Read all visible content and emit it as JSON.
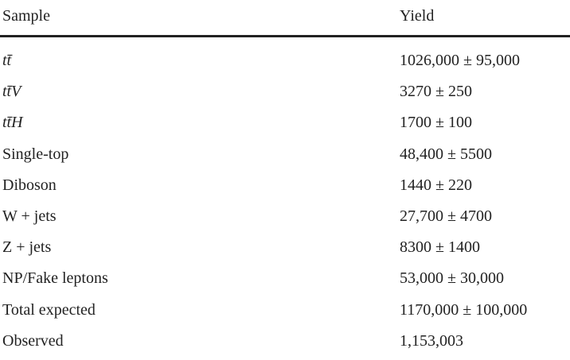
{
  "table": {
    "header": [
      "Sample",
      "Yield"
    ],
    "rows": [
      [
        "tt̄",
        "1026,000 ± 95,000"
      ],
      [
        "tt̄V",
        "3270 ± 250"
      ],
      [
        "tt̄H",
        "1700 ± 100"
      ],
      [
        "Single-top",
        "48,400 ± 5500"
      ],
      [
        "Diboson",
        "1440 ± 220"
      ],
      [
        "W + jets",
        "27,700 ± 4700"
      ],
      [
        "Z + jets",
        "8300 ± 1400"
      ],
      [
        "NP/Fake leptons",
        "53,000 ± 30,000"
      ],
      [
        "Total expected",
        "1170,000 ± 100,000"
      ],
      [
        "Observed",
        "1,153,003"
      ]
    ]
  }
}
